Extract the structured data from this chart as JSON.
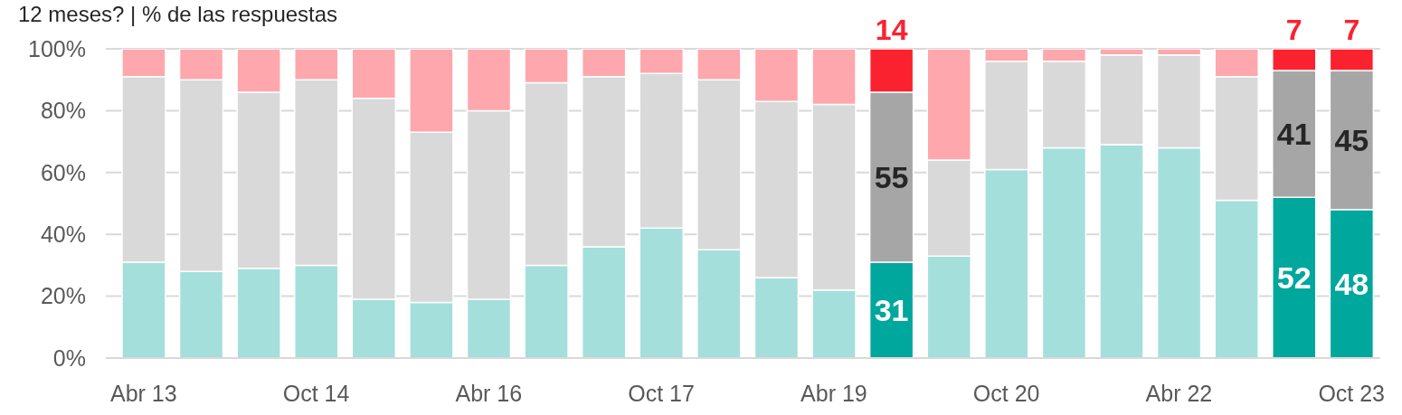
{
  "chart_data": {
    "type": "bar",
    "title": "12 meses? | % de las respuestas",
    "categories": [
      "Abr 13",
      null,
      null,
      "Oct 14",
      null,
      null,
      "Abr 16",
      null,
      null,
      "Oct 17",
      null,
      null,
      "Abr 19",
      null,
      null,
      "Oct 20",
      null,
      null,
      "Abr 22",
      null,
      null,
      "Oct 23"
    ],
    "stacked": true,
    "ylim": [
      0,
      100
    ],
    "yticks": [
      {
        "value": 0,
        "label": "0%"
      },
      {
        "value": 20,
        "label": "20%"
      },
      {
        "value": 40,
        "label": "40%"
      },
      {
        "value": 60,
        "label": "60%"
      },
      {
        "value": 80,
        "label": "80%"
      },
      {
        "value": 100,
        "label": "100%"
      }
    ],
    "grid": "y",
    "series": [
      {
        "colors": [
          "#a4dfdb",
          "#a4dfdb",
          "#a4dfdb",
          "#a4dfdb",
          "#a4dfdb",
          "#a4dfdb",
          "#a4dfdb",
          "#a4dfdb",
          "#a4dfdb",
          "#a4dfdb",
          "#a4dfdb",
          "#a4dfdb",
          "#a4dfdb",
          "#00a79d",
          "#a4dfdb",
          "#a4dfdb",
          "#a4dfdb",
          "#a4dfdb",
          "#a4dfdb",
          "#a4dfdb",
          "#00a79d",
          "#00a79d"
        ],
        "values": [
          31,
          28,
          29,
          30,
          19,
          18,
          19,
          30,
          36,
          42,
          35,
          26,
          22,
          31,
          33,
          61,
          68,
          69,
          68,
          51,
          52,
          48
        ],
        "value_labels": [
          null,
          null,
          null,
          null,
          null,
          null,
          null,
          null,
          null,
          null,
          null,
          null,
          null,
          "31",
          null,
          null,
          null,
          null,
          null,
          null,
          "52",
          "48"
        ]
      },
      {
        "colors": [
          "#d9d9d9",
          "#d9d9d9",
          "#d9d9d9",
          "#d9d9d9",
          "#d9d9d9",
          "#d9d9d9",
          "#d9d9d9",
          "#d9d9d9",
          "#d9d9d9",
          "#d9d9d9",
          "#d9d9d9",
          "#d9d9d9",
          "#d9d9d9",
          "#a6a6a6",
          "#d9d9d9",
          "#d9d9d9",
          "#d9d9d9",
          "#d9d9d9",
          "#d9d9d9",
          "#d9d9d9",
          "#a6a6a6",
          "#a6a6a6"
        ],
        "values": [
          60,
          62,
          57,
          60,
          65,
          55,
          61,
          59,
          55,
          50,
          55,
          57,
          60,
          55,
          31,
          35,
          28,
          29,
          30,
          40,
          41,
          45
        ],
        "value_labels": [
          null,
          null,
          null,
          null,
          null,
          null,
          null,
          null,
          null,
          null,
          null,
          null,
          null,
          "55",
          null,
          null,
          null,
          null,
          null,
          null,
          "41",
          "45"
        ]
      },
      {
        "colors": [
          "#fea7ad",
          "#fea7ad",
          "#fea7ad",
          "#fea7ad",
          "#fea7ad",
          "#fea7ad",
          "#fea7ad",
          "#fea7ad",
          "#fea7ad",
          "#fea7ad",
          "#fea7ad",
          "#fea7ad",
          "#fea7ad",
          "#fb2230",
          "#fea7ad",
          "#fea7ad",
          "#fea7ad",
          "#fea7ad",
          "#fea7ad",
          "#fea7ad",
          "#fb2230",
          "#fb2230"
        ],
        "values": [
          9,
          10,
          14,
          10,
          16,
          27,
          20,
          11,
          9,
          8,
          10,
          17,
          18,
          14,
          36,
          4,
          4,
          2,
          2,
          9,
          7,
          7
        ],
        "value_labels": [
          null,
          null,
          null,
          null,
          null,
          null,
          null,
          null,
          null,
          null,
          null,
          null,
          null,
          "14",
          null,
          null,
          null,
          null,
          null,
          null,
          "7",
          "7"
        ]
      }
    ]
  }
}
